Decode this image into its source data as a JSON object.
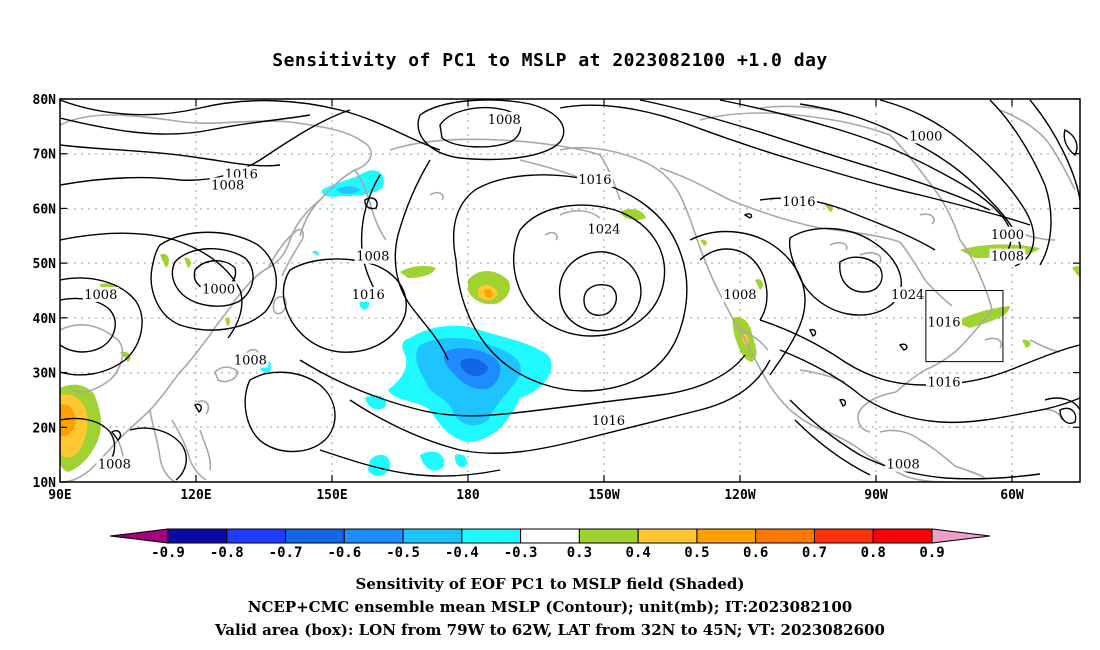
{
  "title": "Sensitivity of PC1 to MSLP at 2023082100 +1.0 day",
  "lat_labels": [
    "80N",
    "70N",
    "60N",
    "50N",
    "40N",
    "30N",
    "20N",
    "10N"
  ],
  "lon_labels": [
    "90E",
    "120E",
    "150E",
    "180",
    "150W",
    "120W",
    "90W",
    "60W"
  ],
  "contour_labels": [
    {
      "text": "1008",
      "lon": -172,
      "lat": 76
    },
    {
      "text": "1016",
      "lon": 130,
      "lat": 66
    },
    {
      "text": "1008",
      "lon": 127,
      "lat": 64
    },
    {
      "text": "1016",
      "lon": -152,
      "lat": 65
    },
    {
      "text": "1024",
      "lon": -150,
      "lat": 56
    },
    {
      "text": "1016",
      "lon": -107,
      "lat": 61
    },
    {
      "text": "1000",
      "lon": -79,
      "lat": 73
    },
    {
      "text": "1000",
      "lon": -61,
      "lat": 55
    },
    {
      "text": "1008",
      "lon": -61,
      "lat": 51
    },
    {
      "text": "1008",
      "lon": 99,
      "lat": 44
    },
    {
      "text": "1000",
      "lon": 125,
      "lat": 45
    },
    {
      "text": "1008",
      "lon": 159,
      "lat": 51
    },
    {
      "text": "1016",
      "lon": 158,
      "lat": 44
    },
    {
      "text": "1008",
      "lon": 132,
      "lat": 32
    },
    {
      "text": "1008",
      "lon": 102,
      "lat": 13
    },
    {
      "text": "1008",
      "lon": -120,
      "lat": 44
    },
    {
      "text": "1024",
      "lon": -83,
      "lat": 44
    },
    {
      "text": "1016",
      "lon": -75,
      "lat": 39
    },
    {
      "text": "1016",
      "lon": -75,
      "lat": 28
    },
    {
      "text": "1016",
      "lon": -149,
      "lat": 21
    },
    {
      "text": "1008",
      "lon": -84,
      "lat": 13
    }
  ],
  "colorbar": {
    "labels": [
      "-0.9",
      "-0.8",
      "-0.7",
      "-0.6",
      "-0.5",
      "-0.4",
      "-0.3",
      "0.3",
      "0.4",
      "0.5",
      "0.6",
      "0.7",
      "0.8",
      "0.9"
    ],
    "colors": [
      "#a0007a",
      "#0a0aa6",
      "#1e3cff",
      "#1464e6",
      "#1e8cff",
      "#1ec4ff",
      "#1efaff",
      "#ffffff",
      "#a0d232",
      "#ffc832",
      "#ffa000",
      "#ff7800",
      "#ff3200",
      "#fa0000",
      "#f0a0c8"
    ]
  },
  "valid_box": {
    "lon_min": -79,
    "lon_max": -62,
    "lat_min": 32,
    "lat_max": 45
  },
  "captions": [
    "Sensitivity of EOF PC1 to MSLP field (Shaded)",
    "NCEP+CMC ensemble mean MSLP (Contour); unit(mb); IT:2023082100",
    "Valid area (box): LON from 79W to 62W, LAT from 32N to 45N; VT: 2023082600"
  ]
}
